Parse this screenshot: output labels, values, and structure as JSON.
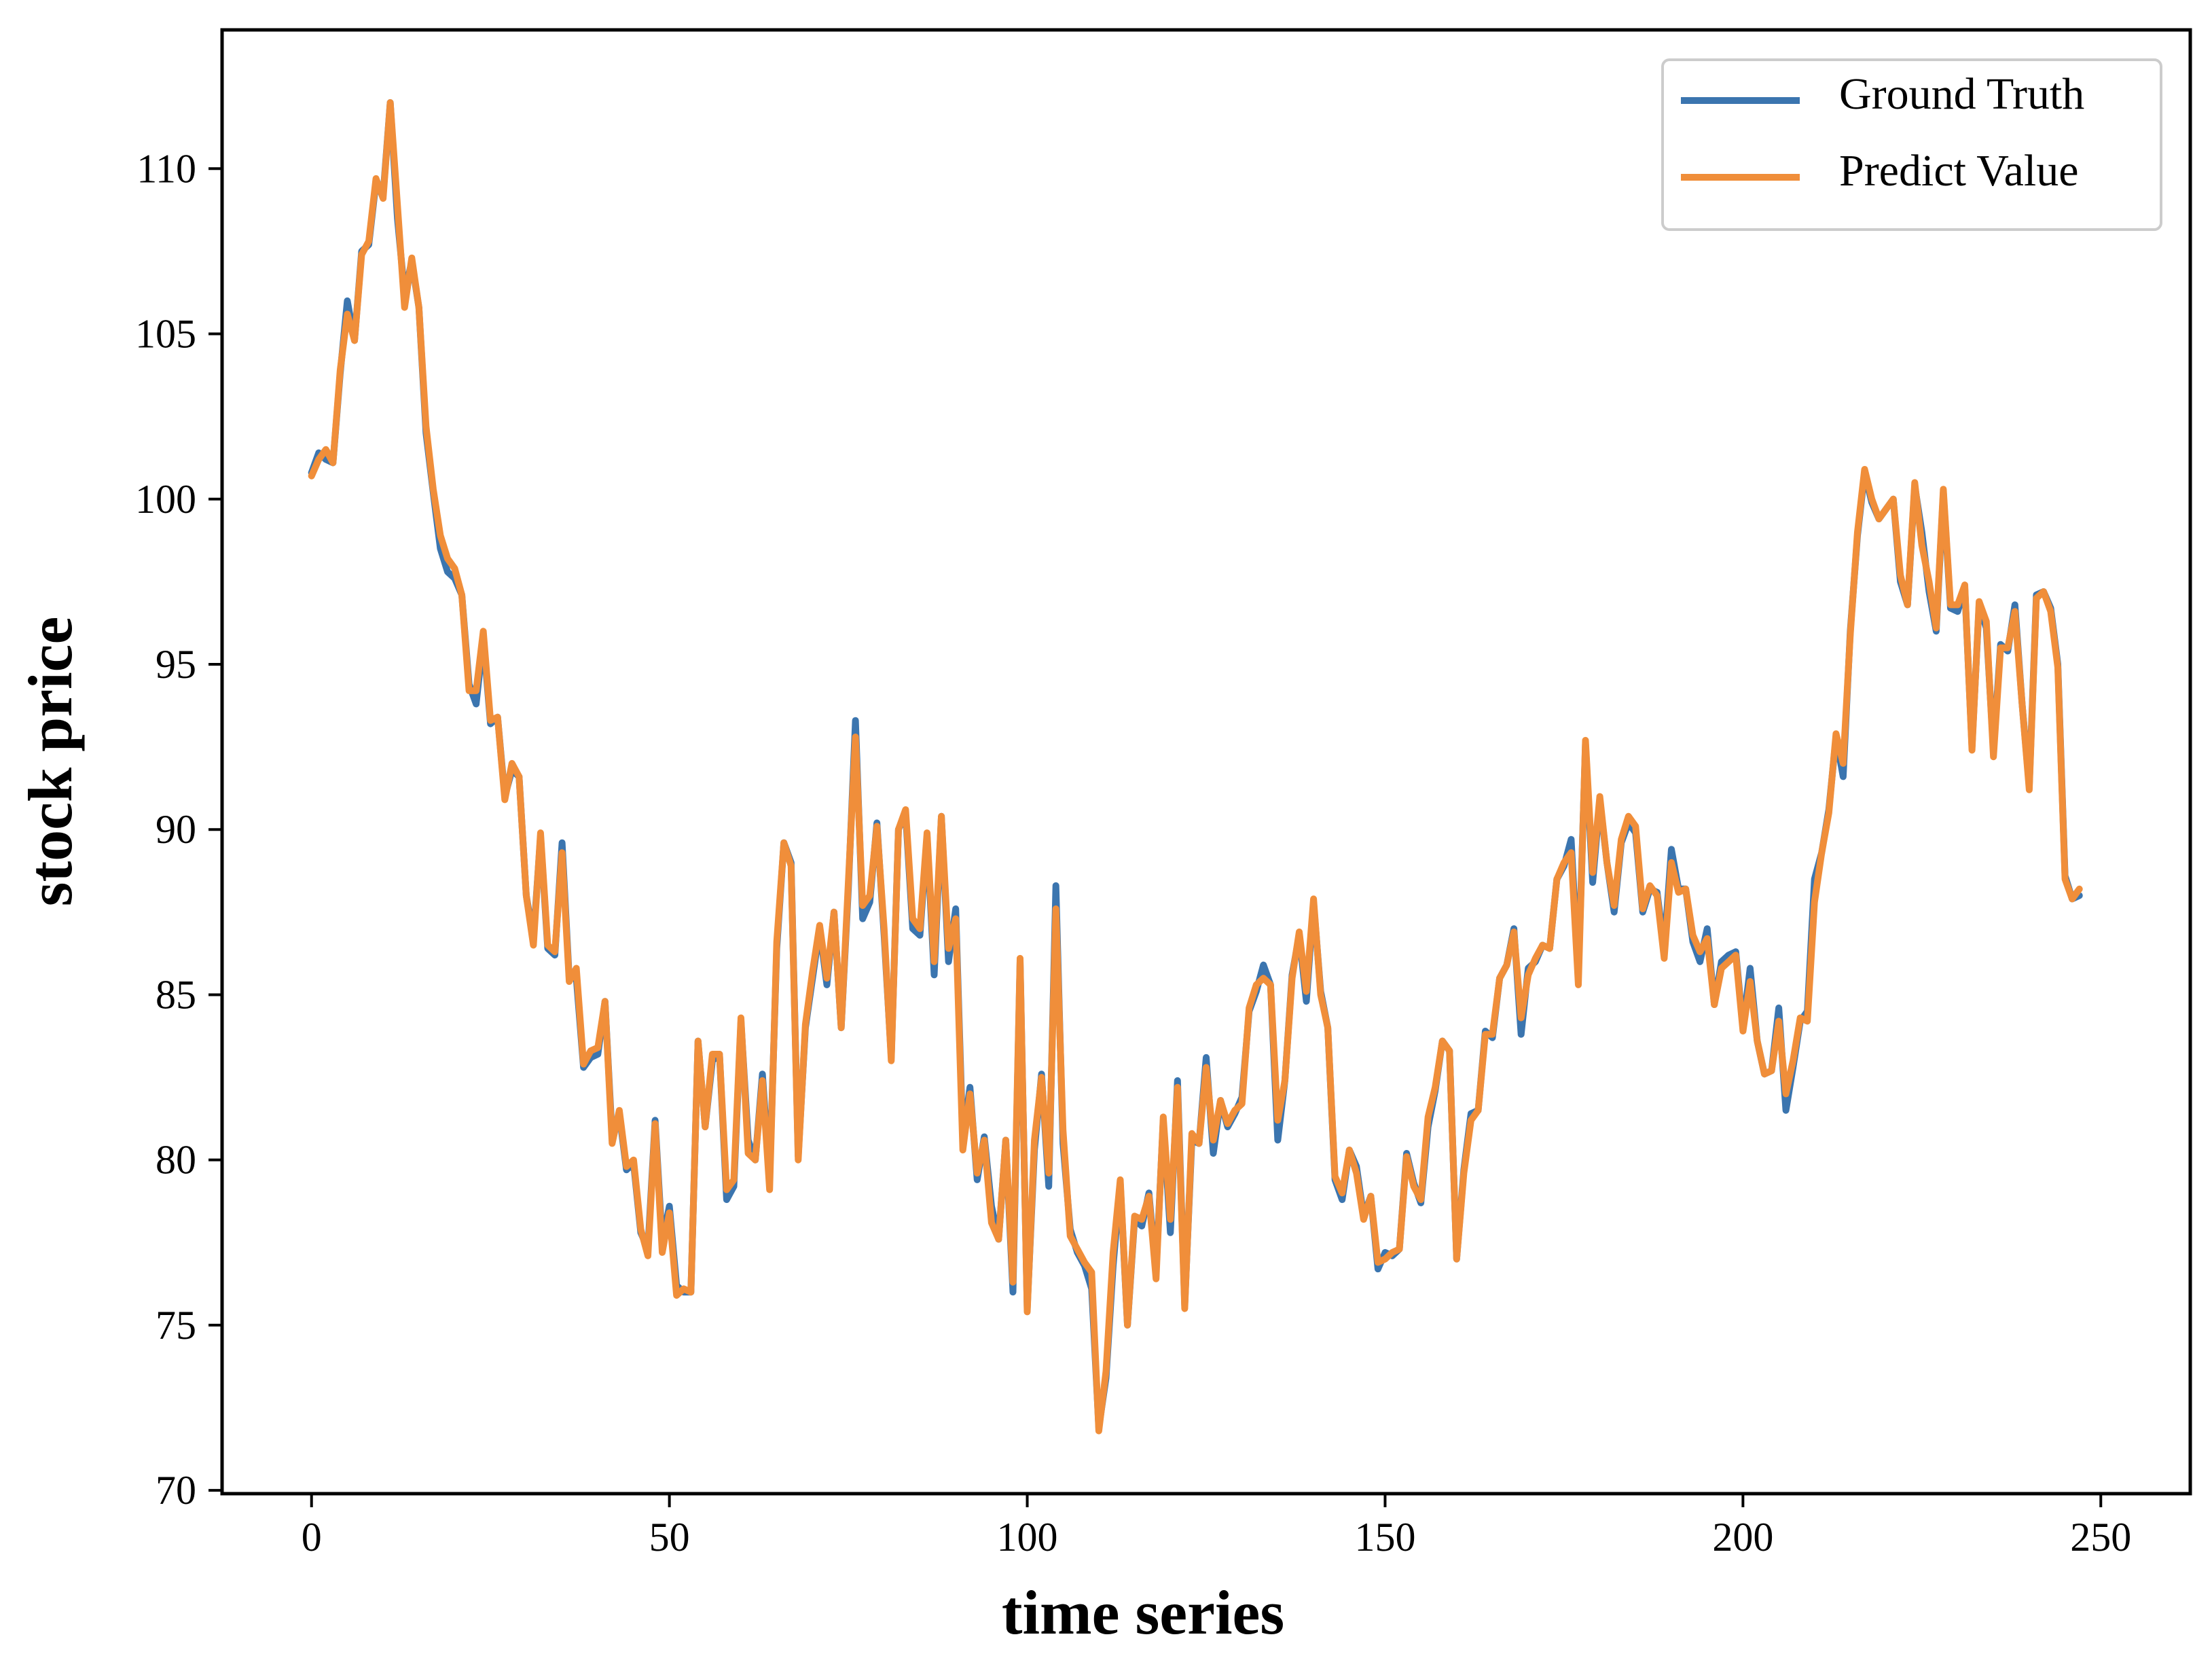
{
  "chart_data": {
    "type": "line",
    "title": "",
    "xlabel": "time series",
    "ylabel": "stock price",
    "xlim": [
      -12.5,
      262.5
    ],
    "ylim": [
      69.9,
      114.2
    ],
    "xticks": [
      0,
      50,
      100,
      150,
      200,
      250
    ],
    "yticks": [
      70,
      75,
      80,
      85,
      90,
      95,
      100,
      105,
      110
    ],
    "grid": false,
    "legend_position": "top-right",
    "series": [
      {
        "name": "Ground Truth",
        "color": "#3b75af",
        "x_start": 0,
        "values": [
          100.8,
          101.4,
          101.2,
          101.1,
          103.8,
          106.0,
          104.8,
          107.5,
          107.7,
          109.6,
          109.2,
          112.0,
          108.5,
          106.2,
          107.2,
          105.8,
          102.0,
          100.2,
          98.5,
          97.8,
          97.6,
          97.1,
          94.4,
          93.8,
          95.8,
          93.2,
          93.4,
          91.0,
          91.8,
          91.6,
          88.0,
          86.7,
          89.8,
          86.4,
          86.2,
          89.6,
          85.5,
          85.5,
          82.8,
          83.1,
          83.2,
          84.8,
          80.7,
          81.4,
          79.7,
          79.9,
          77.8,
          77.3,
          81.2,
          77.5,
          78.6,
          76.2,
          76.0,
          76.0,
          83.6,
          81.0,
          83.0,
          83.2,
          78.8,
          79.2,
          84.2,
          80.6,
          80.0,
          82.6,
          79.4,
          86.4,
          89.6,
          89.0,
          80.1,
          84.0,
          85.5,
          87.0,
          85.3,
          87.5,
          84.0,
          88.2,
          93.3,
          87.3,
          87.8,
          90.2,
          86.8,
          83.1,
          90.0,
          90.5,
          87.0,
          86.8,
          89.8,
          85.6,
          90.4,
          86.0,
          87.6,
          80.6,
          82.2,
          79.4,
          80.7,
          78.6,
          77.6,
          80.6,
          76.0,
          86.0,
          75.5,
          80.3,
          82.6,
          79.2,
          88.3,
          80.5,
          77.9,
          77.2,
          76.8,
          76.1,
          71.9,
          73.4,
          76.8,
          79.3,
          75.0,
          78.2,
          78.0,
          79.0,
          76.6,
          81.2,
          77.8,
          82.4,
          75.6,
          80.6,
          80.5,
          83.1,
          80.2,
          81.8,
          81.0,
          81.4,
          81.9,
          84.5,
          85.1,
          85.9,
          85.3,
          80.6,
          82.4,
          85.6,
          86.8,
          84.8,
          87.8,
          85.1,
          84.0,
          79.4,
          78.8,
          80.3,
          79.8,
          78.3,
          78.9,
          76.7,
          77.2,
          77.1,
          77.3,
          80.2,
          79.3,
          78.7,
          81.0,
          82.1,
          83.6,
          83.3,
          77.0,
          79.7,
          81.4,
          81.5,
          83.9,
          83.7,
          85.5,
          85.9,
          87.0,
          83.8,
          85.8,
          86.0,
          86.5,
          86.4,
          88.5,
          88.9,
          89.7,
          85.6,
          92.6,
          88.4,
          90.9,
          89.0,
          87.5,
          89.6,
          90.2,
          89.9,
          87.5,
          88.2,
          88.1,
          86.4,
          89.4,
          88.2,
          88.2,
          86.6,
          86.0,
          87.0,
          84.7,
          86.0,
          86.2,
          86.3,
          84.0,
          85.8,
          83.6,
          82.6,
          82.7,
          84.6,
          81.5,
          82.8,
          84.2,
          84.5,
          88.5,
          89.3,
          90.6,
          92.8,
          91.6,
          96.0,
          98.9,
          100.8,
          99.9,
          99.4,
          99.7,
          100.0,
          97.5,
          96.8,
          100.4,
          99.0,
          97.2,
          96.0,
          100.2,
          96.7,
          96.6,
          97.3,
          92.5,
          96.8,
          96.1,
          92.4,
          95.6,
          95.4,
          96.8,
          93.8,
          91.3,
          97.1,
          97.2,
          96.7,
          95.0,
          88.6,
          87.9,
          88.0
        ]
      },
      {
        "name": "Predict Value",
        "color": "#f08e3a",
        "x_start": 0,
        "values": [
          100.7,
          101.2,
          101.5,
          101.1,
          103.9,
          105.6,
          104.8,
          107.4,
          107.8,
          109.7,
          109.1,
          112.0,
          108.9,
          105.8,
          107.3,
          105.8,
          102.2,
          100.3,
          98.9,
          98.2,
          97.9,
          97.1,
          94.2,
          94.2,
          96.0,
          93.3,
          93.4,
          90.9,
          92.0,
          91.6,
          88.0,
          86.5,
          89.9,
          86.5,
          86.3,
          89.3,
          85.4,
          85.8,
          82.9,
          83.3,
          83.4,
          84.8,
          80.5,
          81.5,
          79.8,
          80.0,
          77.9,
          77.1,
          81.1,
          77.2,
          78.4,
          75.9,
          76.1,
          76.0,
          83.6,
          81.0,
          83.2,
          83.2,
          79.1,
          79.4,
          84.3,
          80.2,
          80.0,
          82.4,
          79.1,
          86.6,
          89.6,
          88.9,
          80.0,
          84.1,
          85.7,
          87.1,
          85.5,
          87.5,
          84.0,
          88.4,
          92.8,
          87.7,
          88.0,
          90.1,
          87.0,
          83.0,
          90.0,
          90.6,
          87.3,
          87.0,
          89.9,
          86.0,
          90.4,
          86.4,
          87.3,
          80.3,
          82.0,
          79.6,
          80.6,
          78.1,
          77.6,
          80.6,
          76.3,
          86.1,
          75.4,
          80.6,
          82.5,
          79.6,
          87.6,
          80.9,
          77.7,
          77.3,
          76.9,
          76.6,
          71.8,
          73.6,
          77.2,
          79.4,
          75.0,
          78.3,
          78.2,
          78.9,
          76.4,
          81.3,
          78.2,
          82.2,
          75.5,
          80.8,
          80.5,
          82.8,
          80.6,
          81.8,
          81.1,
          81.5,
          81.7,
          84.6,
          85.3,
          85.5,
          85.3,
          81.2,
          82.4,
          85.5,
          86.9,
          85.1,
          87.9,
          85.0,
          84.0,
          79.5,
          79.0,
          80.3,
          79.6,
          78.2,
          78.9,
          76.9,
          77.0,
          77.2,
          77.3,
          80.1,
          79.2,
          78.8,
          81.3,
          82.2,
          83.6,
          83.3,
          77.0,
          79.6,
          81.2,
          81.5,
          83.8,
          83.8,
          85.5,
          85.9,
          86.9,
          84.3,
          85.6,
          86.1,
          86.5,
          86.4,
          88.5,
          89.0,
          89.3,
          85.3,
          92.7,
          88.7,
          91.0,
          89.0,
          87.7,
          89.7,
          90.4,
          90.1,
          87.6,
          88.3,
          88.0,
          86.1,
          89.0,
          88.1,
          88.2,
          86.8,
          86.3,
          86.7,
          84.7,
          85.8,
          86.0,
          86.2,
          83.9,
          85.4,
          83.6,
          82.6,
          82.7,
          84.2,
          82.0,
          83.0,
          84.3,
          84.2,
          87.8,
          89.3,
          90.5,
          92.9,
          92.0,
          95.9,
          99.0,
          100.9,
          100.0,
          99.4,
          99.7,
          100.0,
          97.7,
          96.8,
          100.5,
          98.6,
          97.5,
          96.1,
          100.3,
          96.8,
          96.8,
          97.4,
          92.4,
          96.9,
          96.3,
          92.2,
          95.5,
          95.5,
          96.6,
          93.8,
          91.2,
          97.0,
          97.2,
          96.6,
          94.9,
          88.5,
          87.9,
          88.2
        ]
      }
    ]
  }
}
